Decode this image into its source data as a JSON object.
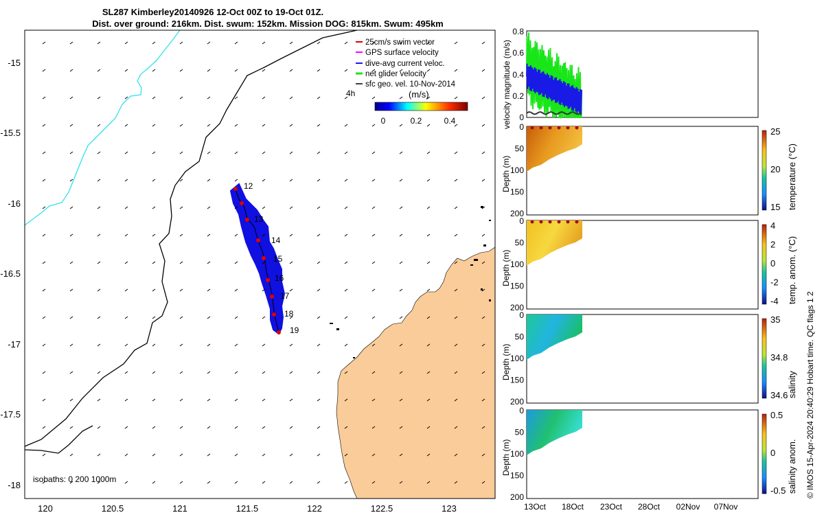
{
  "title_line1": "SL287 Kimberley20140926 12-Oct 00Z to 19-Oct 01Z.",
  "title_line2": "Dist. over ground: 216km. Dist. swum: 152km. Mission DOG: 815km. Swum: 495km",
  "colors": {
    "land": "#f9cc9a",
    "isobath_200": "#000000",
    "isobath_1000": "#33e0e8",
    "track": "#1010e0",
    "swim": "#e00000"
  },
  "map": {
    "xticks": [
      "120",
      "120.5",
      "121",
      "121.5",
      "122",
      "122.5",
      "123"
    ],
    "yticks": [
      "-15",
      "-15.5",
      "-16",
      "-16.5",
      "-17",
      "-17.5",
      "-18"
    ],
    "isobath_label": "isobaths: 0   200  1000m",
    "day_labels": [
      "12",
      "13",
      "14",
      "15",
      "16",
      "17",
      "18",
      "19"
    ],
    "legend": [
      "25cm/s swim vector",
      "GPS surface velocity",
      "dive-avg current veloc.",
      "net glider velocity",
      "sfc geo. vel. 10-Nov-2014"
    ],
    "legend_4h": "4h",
    "colorbar_unit": "(m/s)",
    "colorbar_ticks": [
      "0",
      "0.2",
      "0.4"
    ]
  },
  "chart_data": [
    {
      "type": "line",
      "title": "velocity magnitude",
      "ylabel": "velocity magnitude (m/s)",
      "ylim": [
        0,
        0.8
      ],
      "yticks": [
        "0",
        "0.2",
        "0.4",
        "0.6",
        "0.8"
      ],
      "series": [
        {
          "name": "net glider velocity",
          "color": "#19e619"
        },
        {
          "name": "dive-avg current veloc.",
          "color": "#1a1ae6"
        },
        {
          "name": "sfc geo. vel.",
          "color": "#333333"
        }
      ]
    },
    {
      "type": "heatmap",
      "ylabel": "Depth (m)",
      "cbar_label": "temperature (°C)",
      "cbar_ticks": [
        "25",
        "20",
        "15"
      ],
      "yticks": [
        "0",
        "50",
        "100",
        "150",
        "200"
      ]
    },
    {
      "type": "heatmap",
      "ylabel": "Depth (m)",
      "cbar_label": "temp. anom. (°C)",
      "cbar_ticks": [
        "4",
        "2",
        "0",
        "-2",
        "-4"
      ],
      "yticks": [
        "0",
        "50",
        "100",
        "150",
        "200"
      ]
    },
    {
      "type": "heatmap",
      "ylabel": "Depth (m)",
      "cbar_label": "salinity",
      "cbar_ticks": [
        "35",
        "34.8",
        "34.6"
      ],
      "yticks": [
        "0",
        "50",
        "100",
        "150",
        "200"
      ]
    },
    {
      "type": "heatmap",
      "ylabel": "Depth (m)",
      "cbar_label": "salinity anom.",
      "cbar_ticks": [
        "0.5",
        "0",
        "-0.5"
      ],
      "yticks": [
        "0",
        "50",
        "100",
        "150",
        "200"
      ]
    }
  ],
  "time_ticks": [
    "13Oct",
    "18Oct",
    "23Oct",
    "28Oct",
    "02Nov",
    "07Nov"
  ],
  "footer": "© IMOS 15-Apr-2024 20:40:29 Hobart time. QC flags 1  2"
}
